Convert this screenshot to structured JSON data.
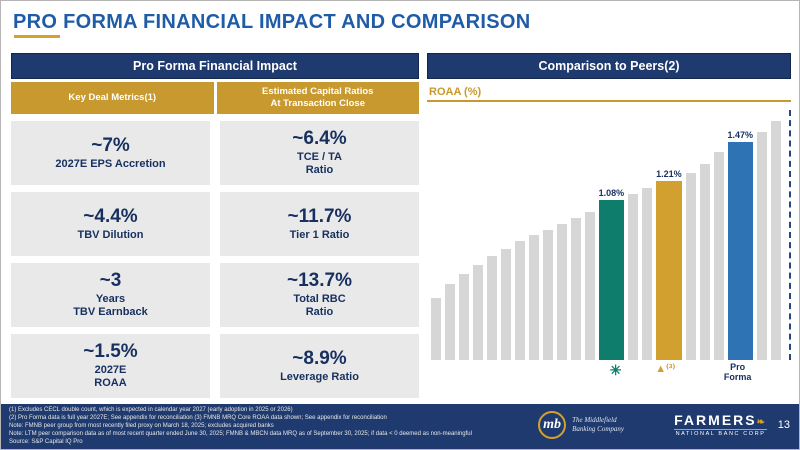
{
  "slide": {
    "title": "PRO FORMA FINANCIAL IMPACT AND COMPARISON",
    "page_number": "13"
  },
  "left_panel": {
    "header": "Pro Forma Financial Impact",
    "columns": [
      {
        "header": "Key Deal Metrics(1)"
      },
      {
        "header": "Estimated Capital Ratios\nAt Transaction Close"
      }
    ],
    "rows": [
      {
        "left_value": "~7%",
        "left_label": "2027E EPS Accretion",
        "right_value": "~6.4%",
        "right_label": "TCE / TA\nRatio"
      },
      {
        "left_value": "~4.4%",
        "left_label": "TBV Dilution",
        "right_value": "~11.7%",
        "right_label": "Tier 1 Ratio"
      },
      {
        "left_value": "~3",
        "left_label": "Years\nTBV Earnback",
        "right_value": "~13.7%",
        "right_label": "Total RBC\nRatio"
      },
      {
        "left_value": "~1.5%",
        "left_label": "2027E\nROAA",
        "right_value": "~8.9%",
        "right_label": "Leverage Ratio"
      }
    ]
  },
  "right_panel": {
    "header": "Comparison to Peers(2)",
    "axis_label": "ROAA (%)"
  },
  "chart_data": {
    "type": "bar",
    "title": "Comparison to Peers(2)",
    "ylabel": "ROAA (%)",
    "ylim": [
      0,
      1.7
    ],
    "grid": false,
    "legend": "none",
    "bars": [
      {
        "value": 0.42,
        "series": "peer"
      },
      {
        "value": 0.51,
        "series": "peer"
      },
      {
        "value": 0.58,
        "series": "peer"
      },
      {
        "value": 0.64,
        "series": "peer"
      },
      {
        "value": 0.7,
        "series": "peer"
      },
      {
        "value": 0.75,
        "series": "peer"
      },
      {
        "value": 0.8,
        "series": "peer"
      },
      {
        "value": 0.84,
        "series": "peer"
      },
      {
        "value": 0.88,
        "series": "peer"
      },
      {
        "value": 0.92,
        "series": "peer"
      },
      {
        "value": 0.96,
        "series": "peer"
      },
      {
        "value": 1.0,
        "series": "peer"
      },
      {
        "value": 1.08,
        "series": "mbcn",
        "label": "1.08%",
        "marker": "✳"
      },
      {
        "value": 1.12,
        "series": "peer"
      },
      {
        "value": 1.16,
        "series": "peer"
      },
      {
        "value": 1.21,
        "series": "fmnb",
        "label": "1.21%",
        "marker": "▲⁽³⁾"
      },
      {
        "value": 1.26,
        "series": "peer"
      },
      {
        "value": 1.32,
        "series": "peer"
      },
      {
        "value": 1.4,
        "series": "peer"
      },
      {
        "value": 1.47,
        "series": "pro_forma",
        "label": "1.47%",
        "marker": "Pro\nForma"
      },
      {
        "value": 1.54,
        "series": "peer"
      },
      {
        "value": 1.61,
        "series": "peer"
      }
    ],
    "series_colors": {
      "peer": "#d6d6d6",
      "mbcn": "#0e7d6c",
      "fmnb": "#d2a02f",
      "pro_forma": "#2e74b5"
    }
  },
  "footer": {
    "footnotes": [
      "(1) Excludes CECL double count, which is expected in calendar year 2027 (early adoption in 2025 or 2026)",
      "(2) Pro Forma data is full year 2027E; See appendix for reconciliation (3) FMNB MRQ Core ROAA data shown; See appendix for reconciliation",
      "Note: FMNB peer group from most recently filed proxy on March 18, 2025; excludes acquired banks",
      "Note: LTM peer comparison data as of most recent quarter ended June 30, 2025; FMNB & MBCN data MRQ as of September 30, 2025; if data < 0 deemed as non-meaningful",
      "Source: S&P Capital IQ Pro"
    ],
    "middlefield_logo": {
      "mark": "mb",
      "name": "The Middlefield\nBanking Company"
    },
    "farmers_logo": {
      "name": "FARMERS",
      "leaf": "❧",
      "subtitle": "NATIONAL BANC CORP"
    }
  },
  "colors": {
    "title_blue": "#1f5ca8",
    "navy": "#1f3a6e",
    "gold": "#c8992e",
    "cell_gray": "#e9e9e9",
    "teal_bar": "#0e7d6c",
    "gold_bar": "#d2a02f",
    "blue_bar": "#2e74b5",
    "peer_bar": "#d6d6d6"
  }
}
